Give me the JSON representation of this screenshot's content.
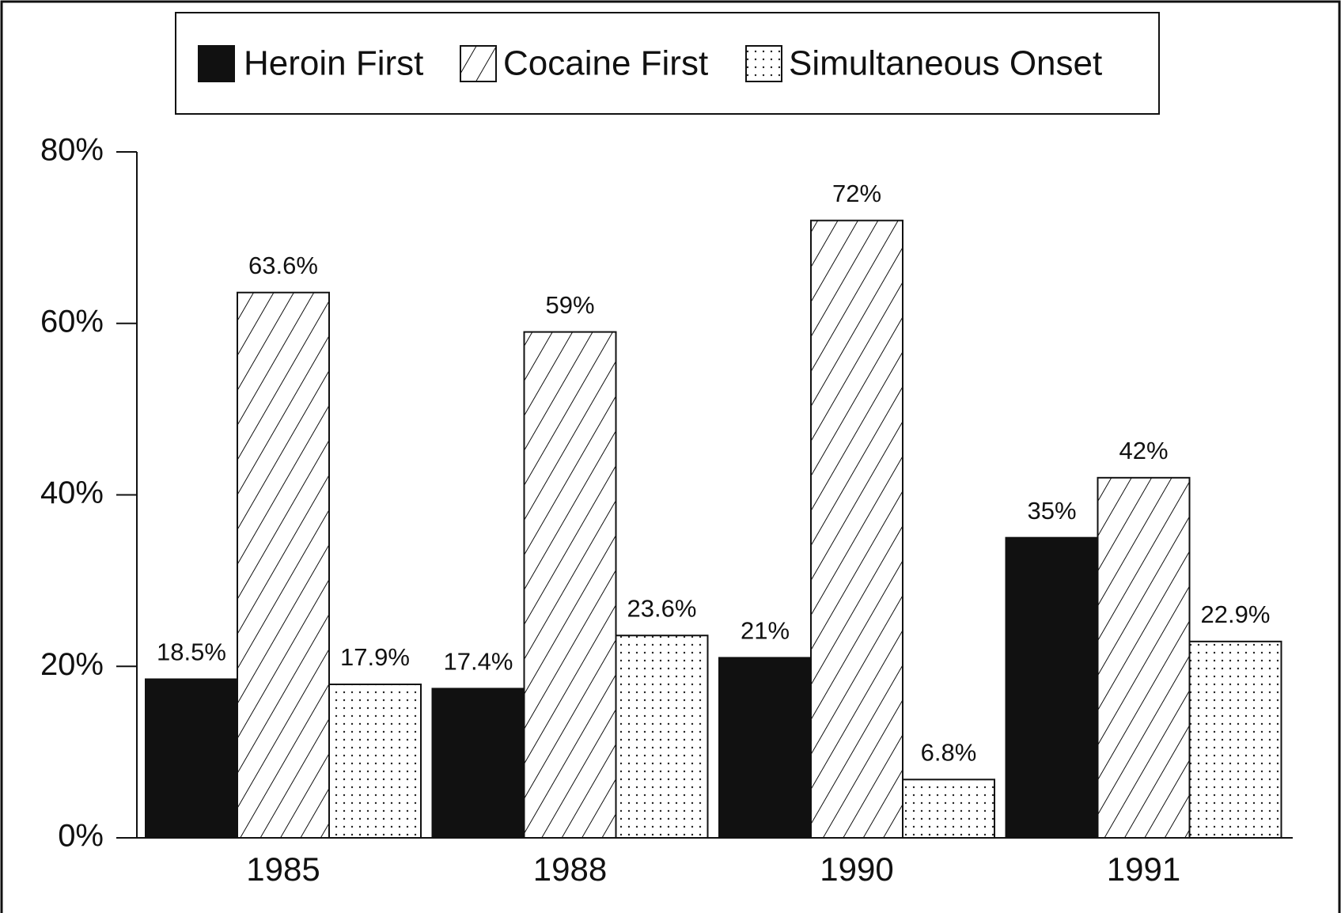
{
  "chart_data": {
    "type": "bar",
    "categories": [
      "1985",
      "1988",
      "1990",
      "1991"
    ],
    "series": [
      {
        "name": "Heroin First",
        "color": "#111111",
        "pattern": "solid",
        "values": [
          18.5,
          17.4,
          21,
          35
        ],
        "value_labels": [
          "18.5%",
          "17.4%",
          "21%",
          "35%"
        ]
      },
      {
        "name": "Cocaine First",
        "color": "#111111",
        "pattern": "hatch",
        "values": [
          63.6,
          59,
          72,
          42
        ],
        "value_labels": [
          "63.6%",
          "59%",
          "72%",
          "42%"
        ]
      },
      {
        "name": "Simultaneous Onset",
        "color": "#111111",
        "pattern": "dots",
        "values": [
          17.9,
          23.6,
          6.8,
          22.9
        ],
        "value_labels": [
          "17.9%",
          "23.6%",
          "6.8%",
          "22.9%"
        ]
      }
    ],
    "ylim": [
      0,
      80
    ],
    "yticks": [
      {
        "value": 0,
        "label": "0%"
      },
      {
        "value": 20,
        "label": "20%"
      },
      {
        "value": 40,
        "label": "40%"
      },
      {
        "value": 60,
        "label": "60%"
      },
      {
        "value": 80,
        "label": "80%"
      }
    ],
    "legend": "top",
    "grid": false
  }
}
